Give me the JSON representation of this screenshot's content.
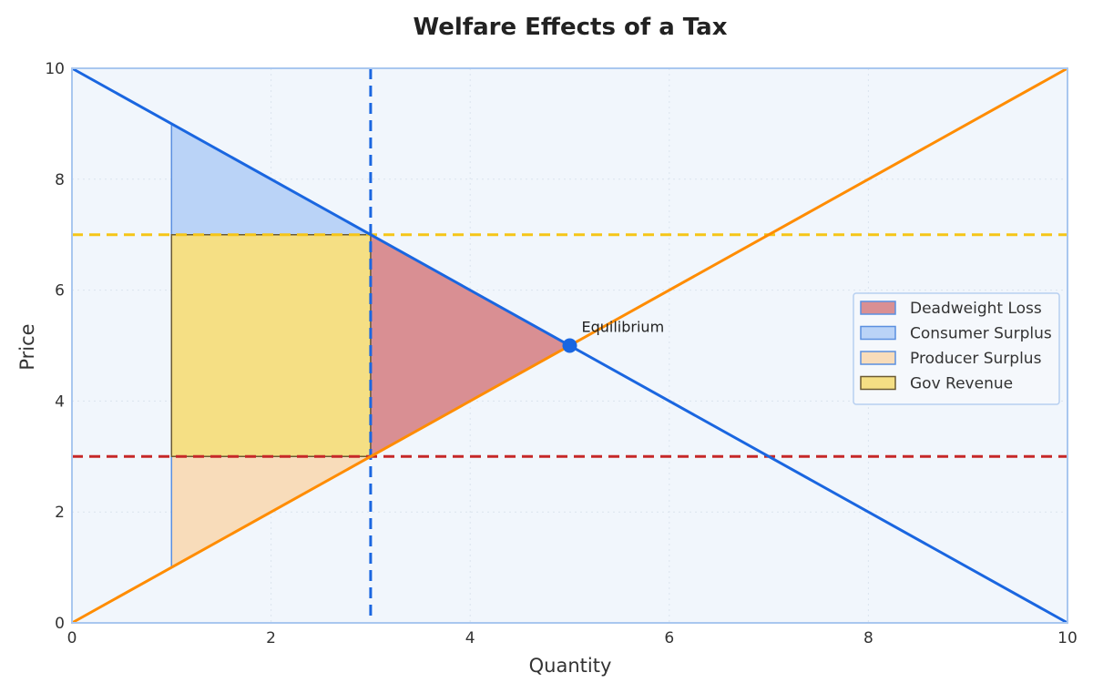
{
  "chart_data": {
    "type": "line",
    "title": "Welfare Effects of a Tax",
    "xlabel": "Quantity",
    "ylabel": "Price",
    "xlim": [
      0,
      10
    ],
    "ylim": [
      0,
      10
    ],
    "xticks": [
      "0",
      "2",
      "4",
      "6",
      "8",
      "10"
    ],
    "yticks": [
      "0",
      "2",
      "4",
      "6",
      "8",
      "10"
    ],
    "grid": true,
    "legend_position": "right",
    "series": [
      {
        "id": "demand",
        "x": [
          0,
          10
        ],
        "y": [
          10,
          0
        ],
        "color": "#1a66e0"
      },
      {
        "id": "supply",
        "x": [
          0,
          10
        ],
        "y": [
          0,
          10
        ],
        "color": "#ff8c00"
      }
    ],
    "reference_lines": {
      "buyer_price": {
        "y": 7,
        "color": "#f5c518"
      },
      "seller_price": {
        "y": 3,
        "color": "#c62828"
      },
      "taxed_quantity": {
        "x": 3,
        "color": "#1a66e0"
      }
    },
    "regions": [
      {
        "name": "Deadweight Loss",
        "polygon": [
          [
            3,
            7
          ],
          [
            5,
            5
          ],
          [
            3,
            3
          ]
        ],
        "fill": "#d98f93",
        "stroke": "#5b8fe0"
      },
      {
        "name": "Consumer Surplus",
        "polygon": [
          [
            1,
            9
          ],
          [
            3,
            7
          ],
          [
            1,
            7
          ]
        ],
        "fill": "#bad3f7",
        "stroke": "#5b8fe0"
      },
      {
        "name": "Producer Surplus",
        "polygon": [
          [
            1,
            1
          ],
          [
            3,
            3
          ],
          [
            1,
            3
          ]
        ],
        "fill": "#f8dcba",
        "stroke": "#5b8fe0"
      },
      {
        "name": "Gov Revenue",
        "polygon": [
          [
            1,
            3
          ],
          [
            3,
            3
          ],
          [
            3,
            7
          ],
          [
            1,
            7
          ]
        ],
        "fill": "#f5df84",
        "stroke": "#6b5a32"
      }
    ],
    "points": [
      {
        "label": "Equilibrium",
        "x": 5,
        "y": 5,
        "color": "#1a66e0"
      }
    ]
  }
}
